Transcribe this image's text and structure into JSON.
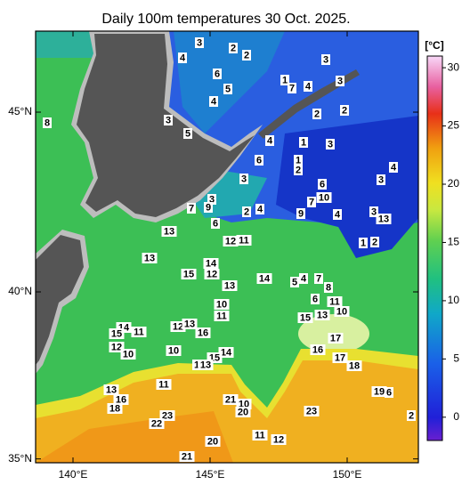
{
  "title": "Daily 100m temperatures 30 Oct. 2025.",
  "unit_label": "[°C]",
  "xticks": [
    {
      "value": 140,
      "label": "140°E"
    },
    {
      "value": 145,
      "label": "145°E"
    },
    {
      "value": 150,
      "label": "150°E"
    }
  ],
  "yticks": [
    {
      "value": 35,
      "label": "35°N"
    },
    {
      "value": 40,
      "label": "40°N"
    },
    {
      "value": 45,
      "label": "45°N"
    }
  ],
  "colorbar": {
    "range": [
      -2,
      31
    ],
    "ticks": [
      0,
      5,
      10,
      15,
      20,
      25,
      30
    ]
  },
  "contour_labels": [
    8,
    3,
    2,
    2,
    4,
    6,
    5,
    4,
    3,
    1,
    7,
    4,
    3,
    2,
    2,
    3,
    5,
    4,
    1,
    3,
    6,
    1,
    2,
    6,
    4,
    3,
    3,
    3,
    9,
    7,
    7,
    10,
    4,
    2,
    9,
    4,
    3,
    13,
    6,
    1,
    2,
    13,
    12,
    11,
    13,
    14,
    15,
    12,
    14,
    5,
    4,
    7,
    13,
    8,
    10,
    11,
    6,
    11,
    10,
    15,
    13,
    14,
    15,
    11,
    12,
    13,
    16,
    12,
    10,
    10,
    14,
    15,
    1,
    13,
    17,
    16,
    17,
    18,
    11,
    13,
    19,
    6,
    16,
    18,
    21,
    10,
    20,
    23,
    22,
    23,
    2,
    11,
    12,
    20,
    21
  ]
}
